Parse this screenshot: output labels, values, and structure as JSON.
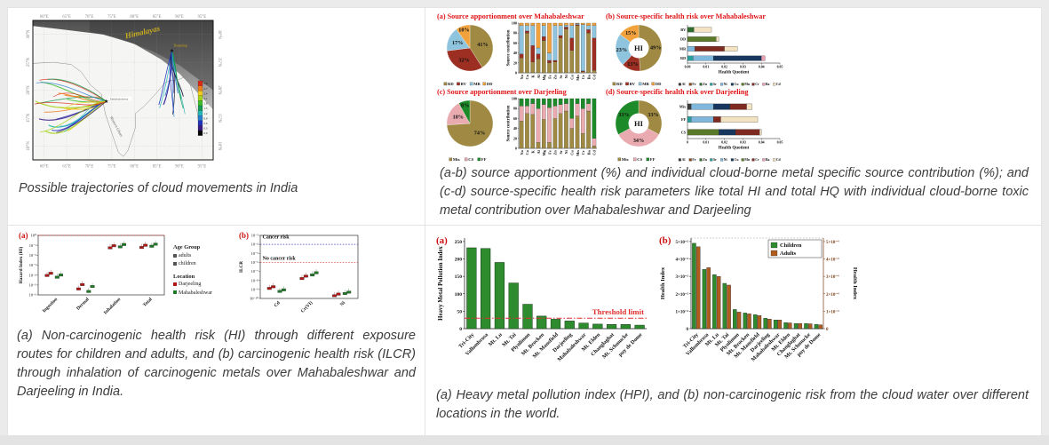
{
  "captions": {
    "map": "Possible trajectories of cloud movements in India",
    "apportionment": "(a-b) source apportionment (%) and individual cloud-borne metal specific source contribution (%); and (c-d) source-specific health risk parameters like total HI and total HQ with individual cloud-borne toxic metal contribution over Mahabaleshwar and Darjeeling",
    "risk": "(a) Non-carcinogenic health risk (HI) through different exposure routes for children and adults, and (b) carcinogenic health risk (ILCR) through inhalation of carcinogenic metals over Mahabaleshwar and Darjeeling in India.",
    "hpi": "(a) Heavy metal pollution index (HPI), and (b) non-carcinogenic risk from the cloud water over different locations in the world."
  },
  "map": {
    "lon_ticks": [
      "60°E",
      "65°E",
      "70°E",
      "75°E",
      "80°E",
      "85°E",
      "90°E",
      "95°E"
    ],
    "lat_ticks": [
      "30°N",
      "25°N",
      "20°N",
      "15°N",
      "10°N"
    ],
    "labels": {
      "region": "Himalayas",
      "site1": "Darjeeling",
      "site2": "Mahabaleshwar",
      "range": "Western Ghats"
    },
    "colorbar": {
      "values": [
        "3.0",
        "2.7",
        "2.4",
        "2.1",
        "1.8",
        "1.5",
        "1.2",
        "0.9",
        "0.6",
        "0.3",
        "0.0"
      ],
      "colors": [
        "#d92818",
        "#ef7d1a",
        "#f2cf1d",
        "#a6d41c",
        "#3fbf2e",
        "#169a55",
        "#23b6b6",
        "#2a7fd4",
        "#2133bd",
        "#3a1a85",
        "#050505"
      ]
    }
  },
  "metal_colors": {
    "Al": "#3a3a3a",
    "Fe": "#8a4513",
    "Zn": "#2f6b2f",
    "Sr": "#2a9d9d",
    "Ni": "#7fb8dc",
    "Cu": "#17375e",
    "Mn": "#5b7a29",
    "Cr": "#7e2a20",
    "Ba": "#e9a0b4",
    "Cd": "#f4e3c3"
  },
  "chart_data": [
    {
      "id": "pie-a",
      "type": "pie",
      "title": "(a)  Source apportionment over Mahabaleshwar",
      "slices": [
        {
          "label": "RD",
          "value": 41,
          "color": "#a08a43"
        },
        {
          "label": "BV",
          "value": 32,
          "color": "#9c2e22"
        },
        {
          "label": "MR",
          "value": 17,
          "color": "#8fc4de"
        },
        {
          "label": "DD",
          "value": 10,
          "color": "#f1a23c"
        }
      ]
    },
    {
      "id": "stack-a",
      "type": "bar",
      "stacked": true,
      "ylabel": "Source contribution",
      "ylim": [
        0,
        100
      ],
      "yticks": [
        0,
        20,
        40,
        60,
        80,
        100
      ],
      "categories": [
        "Na",
        "Ca",
        "K",
        "Al",
        "Mg",
        "Fe",
        "Zn",
        "Sr",
        "Ni",
        "Cu",
        "Mn",
        "Cr",
        "Ba",
        "Cd"
      ],
      "series": [
        {
          "name": "RD",
          "color": "#a08a43",
          "values": [
            30,
            80,
            22,
            28,
            65,
            20,
            22,
            70,
            88,
            45,
            95,
            2,
            80,
            5
          ]
        },
        {
          "name": "BV",
          "color": "#9c2e22",
          "values": [
            8,
            4,
            33,
            10,
            8,
            5,
            3,
            5,
            4,
            25,
            2,
            2,
            7,
            65
          ]
        },
        {
          "name": "MR",
          "color": "#8fc4de",
          "values": [
            57,
            11,
            40,
            12,
            22,
            15,
            70,
            20,
            4,
            25,
            2,
            93,
            8,
            25
          ]
        },
        {
          "name": "DD",
          "color": "#f1a23c",
          "values": [
            5,
            5,
            5,
            50,
            5,
            60,
            5,
            5,
            4,
            5,
            1,
            3,
            5,
            5
          ]
        }
      ]
    },
    {
      "id": "donut-b",
      "type": "pie",
      "donut": true,
      "center_label": "HI",
      "title": "(b)  Source-specific health risk over Mahabaleshwar",
      "slices": [
        {
          "label": "RD",
          "value": 49,
          "color": "#a08a43"
        },
        {
          "label": "BV",
          "value": 13,
          "color": "#9c2e22"
        },
        {
          "label": "MR",
          "value": 23,
          "color": "#8fc4de"
        },
        {
          "label": "DD",
          "value": 15,
          "color": "#f1a23c"
        }
      ]
    },
    {
      "id": "hq-b",
      "type": "bar",
      "horizontal": true,
      "stacked": true,
      "xlabel": "Health Quotient",
      "xlim": [
        0,
        0.05
      ],
      "xticks": [
        "0.00",
        "0.01",
        "0.02",
        "0.03",
        "0.04",
        "0.05"
      ],
      "rows": [
        {
          "label": "BV",
          "segments": [
            {
              "metal": "Zn",
              "value": 0.0035
            },
            {
              "metal": "Cd",
              "value": 0.0095
            }
          ]
        },
        {
          "label": "DD",
          "segments": [
            {
              "metal": "Mn",
              "value": 0.0155
            },
            {
              "metal": "Cd",
              "value": 0.0015
            }
          ]
        },
        {
          "label": "MR",
          "segments": [
            {
              "metal": "Ni",
              "value": 0.004
            },
            {
              "metal": "Cr",
              "value": 0.016
            },
            {
              "metal": "Cd",
              "value": 0.007
            }
          ]
        },
        {
          "label": "RD",
          "segments": [
            {
              "metal": "Sr",
              "value": 0.003
            },
            {
              "metal": "Ni",
              "value": 0.011
            },
            {
              "metal": "Cu",
              "value": 0.026
            },
            {
              "metal": "Ba",
              "value": 0.002
            }
          ]
        }
      ],
      "legend": [
        "Al",
        "Fe",
        "Zn",
        "Sr",
        "Ni",
        "Cu",
        "Mn",
        "Cr",
        "Ba",
        "Cd"
      ]
    },
    {
      "id": "pie-c",
      "type": "pie",
      "title": "(c)  Source apportionment over Darjeeling",
      "slices": [
        {
          "label": "Mix",
          "value": 74,
          "color": "#a08a43"
        },
        {
          "label": "CS",
          "value": 18,
          "color": "#e9aab0"
        },
        {
          "label": "FF",
          "value": 8,
          "color": "#1c8a28"
        }
      ]
    },
    {
      "id": "stack-c",
      "type": "bar",
      "stacked": true,
      "ylabel": "Source contribution",
      "ylim": [
        0,
        100
      ],
      "yticks": [
        0,
        20,
        40,
        60,
        80,
        100
      ],
      "categories": [
        "Na",
        "Ca",
        "K",
        "Al",
        "Mg",
        "Fe",
        "Zn",
        "Sr",
        "Ni",
        "Cu",
        "Mn",
        "Cr",
        "Ba",
        "Cd"
      ],
      "series": [
        {
          "name": "Mix",
          "color": "#a08a43",
          "values": [
            55,
            70,
            68,
            12,
            58,
            12,
            60,
            70,
            75,
            40,
            65,
            30,
            75,
            5
          ]
        },
        {
          "name": "CS",
          "color": "#e9aab0",
          "values": [
            30,
            15,
            22,
            68,
            30,
            70,
            25,
            18,
            15,
            20,
            25,
            50,
            15,
            15
          ]
        },
        {
          "name": "FF",
          "color": "#1c8a28",
          "values": [
            15,
            15,
            10,
            20,
            12,
            18,
            15,
            12,
            10,
            40,
            10,
            20,
            10,
            80
          ]
        }
      ]
    },
    {
      "id": "donut-d",
      "type": "pie",
      "donut": true,
      "center_label": "HI",
      "title": "(d)  Source-specific health risk over Darjeeling",
      "slices": [
        {
          "label": "Mix",
          "value": 33,
          "color": "#a08a43"
        },
        {
          "label": "CS",
          "value": 34,
          "color": "#e9aab0"
        },
        {
          "label": "FF",
          "value": 33,
          "color": "#1c8a28"
        }
      ]
    },
    {
      "id": "hq-d",
      "type": "bar",
      "horizontal": true,
      "stacked": true,
      "xlabel": "Health Quotient",
      "xlim": [
        0,
        0.05
      ],
      "xticks": [
        "0",
        "0.01",
        "0.02",
        "0.03",
        "0.04",
        "0.05"
      ],
      "rows": [
        {
          "label": "Mix",
          "segments": [
            {
              "metal": "Al",
              "value": 0.002
            },
            {
              "metal": "Ni",
              "value": 0.012
            },
            {
              "metal": "Cu",
              "value": 0.009
            },
            {
              "metal": "Cr",
              "value": 0.009
            },
            {
              "metal": "Cd",
              "value": 0.003
            }
          ]
        },
        {
          "label": "FF",
          "segments": [
            {
              "metal": "Sr",
              "value": 0.002
            },
            {
              "metal": "Ni",
              "value": 0.012
            },
            {
              "metal": "Cr",
              "value": 0.004
            },
            {
              "metal": "Cd",
              "value": 0.02
            }
          ]
        },
        {
          "label": "CS",
          "segments": [
            {
              "metal": "Mn",
              "value": 0.017
            },
            {
              "metal": "Cu",
              "value": 0.009
            },
            {
              "metal": "Cr",
              "value": 0.013
            },
            {
              "metal": "Cd",
              "value": 0.001
            }
          ]
        }
      ],
      "legend": [
        "Al",
        "Fe",
        "Zn",
        "Sr",
        "Ni",
        "Cu",
        "Mn",
        "Cr",
        "Ba",
        "Cd"
      ]
    },
    {
      "id": "hi-scatter",
      "type": "scatter",
      "panel_label": "(a)",
      "ylabel": "Hazard Index (HI)",
      "log_range": [
        0,
        -6
      ],
      "yticks": [
        "10⁰",
        "10⁻¹",
        "10⁻²",
        "10⁻³",
        "10⁻⁴",
        "10⁻⁵",
        "10⁻⁶"
      ],
      "categories": [
        "Ingestion",
        "Dermal",
        "Inhalation",
        "Total"
      ],
      "reference_lines": [
        {
          "value": 1,
          "color": "#e03030"
        }
      ],
      "series": [
        {
          "name": "Darjeeling adults",
          "color": "#b01616",
          "values": [
            9e-05,
            4e-06,
            0.055,
            0.06
          ]
        },
        {
          "name": "Darjeeling children",
          "color": "#b01616",
          "values": [
            0.00015,
            1.1e-05,
            0.09,
            0.1
          ]
        },
        {
          "name": "Mahabaleshwar adults",
          "color": "#1d7a26",
          "values": [
            6e-05,
            2.2e-06,
            0.07,
            0.08
          ]
        },
        {
          "name": "Mahabaleshwar children",
          "color": "#1d7a26",
          "values": [
            0.0001,
            7e-06,
            0.12,
            0.13
          ]
        }
      ],
      "legend": {
        "age_group_title": "Age Group",
        "age_groups": [
          "adults",
          "children"
        ],
        "location_title": "Location",
        "locations": [
          {
            "name": "Darjeeling",
            "color": "#b01616"
          },
          {
            "name": "Mahabaleshwar",
            "color": "#1d7a26"
          }
        ]
      }
    },
    {
      "id": "ilcr-scatter",
      "type": "scatter",
      "panel_label": "(b)",
      "ylabel": "ILCR",
      "log_range": [
        -3,
        -10
      ],
      "yticks": [
        "10⁻³",
        "10⁻⁴",
        "10⁻⁵",
        "10⁻⁶",
        "10⁻⁷",
        "10⁻⁸",
        "10⁻⁹",
        "10⁻¹⁰"
      ],
      "categories": [
        "Cd",
        "Cr(VI)",
        "Ni"
      ],
      "annotations": [
        {
          "text": "Cancer risk",
          "log_y": -3.35
        },
        {
          "text": "No cancer risk",
          "log_y": -5.72
        }
      ],
      "reference_lines": [
        {
          "value": 0.0001,
          "color": "#4040c0"
        },
        {
          "value": 1e-06,
          "color": "#e03030"
        }
      ],
      "series": [
        {
          "name": "Darjeeling adults",
          "color": "#b01616",
          "values": [
            1.3e-09,
            1.6e-08,
            2e-10
          ]
        },
        {
          "name": "Darjeeling children",
          "color": "#b01616",
          "values": [
            2e-09,
            3e-08,
            3e-10
          ]
        },
        {
          "name": "Mahabaleshwar adults",
          "color": "#1d7a26",
          "values": [
            6e-10,
            4e-08,
            3.5e-10
          ]
        },
        {
          "name": "Mahabaleshwar children",
          "color": "#1d7a26",
          "values": [
            9e-10,
            7e-08,
            5e-10
          ]
        }
      ]
    },
    {
      "id": "hpi-bars",
      "type": "bar",
      "panel_label": "(a)",
      "ylabel": "Heavy Metal Pollution Index",
      "ylim": [
        0,
        260
      ],
      "yticks": [
        0,
        50,
        100,
        150,
        200,
        250
      ],
      "bar_color": "#2e8b2e",
      "categories": [
        "Tri-City",
        "Vallombrosa",
        "Mt. Lu",
        "Mt. Tai",
        "Plynlimon",
        "Mt. Brocken",
        "Mt. Mansfield",
        "Darjeeling",
        "Mahabaleshwar",
        "Mt. Elden",
        "Changlaghat",
        "Mt. Schmucke",
        "puy de Dome"
      ],
      "values": [
        232,
        230,
        190,
        131,
        70,
        36,
        27,
        22,
        16,
        13,
        12,
        12,
        10
      ],
      "threshold": {
        "value": 30,
        "label": "Threshold limit",
        "color": "#e03030"
      }
    },
    {
      "id": "health-index",
      "type": "bar",
      "panel_label": "(b)",
      "ylabel_left": "Health Index",
      "ylabel_right": "Health Index",
      "ylim": [
        0,
        0.052
      ],
      "yticks_left": [
        "0",
        "1×10⁻²",
        "2×10⁻²",
        "3×10⁻²",
        "4×10⁻²",
        "5×10⁻²"
      ],
      "yticks_right": [
        "0",
        "1×10⁻⁴",
        "2×10⁻⁴",
        "3×10⁻⁴",
        "4×10⁻⁴",
        "5×10⁻⁴"
      ],
      "categories": [
        "Tri-City",
        "Vallombrosa",
        "Mt. Lu",
        "Mt. Tai",
        "Plynlimon",
        "Mt. Brocken",
        "Mt. Mansfield",
        "Darjeeling",
        "Mahabaleshwar",
        "Mt. Elden",
        "Changlaghat",
        "Mt. Schmucke",
        "puy de Dome"
      ],
      "series": [
        {
          "name": "Children",
          "color": "#2e8b2e",
          "values": [
            0.049,
            0.034,
            0.031,
            0.026,
            0.011,
            0.009,
            0.008,
            0.006,
            0.005,
            0.0035,
            0.003,
            0.003,
            0.0025
          ]
        },
        {
          "name": "Adults",
          "color": "#b05c1f",
          "values": [
            0.047,
            0.035,
            0.03,
            0.025,
            0.0095,
            0.0085,
            0.0075,
            0.0055,
            0.005,
            0.0033,
            0.003,
            0.0028,
            0.0022
          ]
        }
      ]
    }
  ]
}
